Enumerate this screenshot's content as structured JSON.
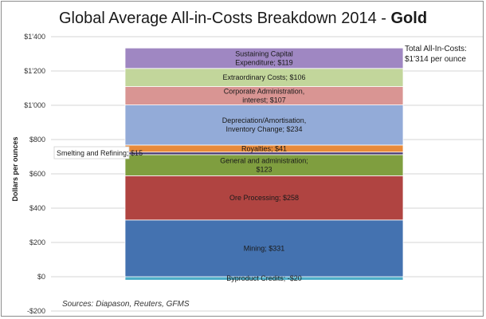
{
  "chart_data": {
    "type": "bar",
    "stacked": true,
    "title": "Global Average All-in-Costs Breakdown 2014 - ",
    "title_emphasis": "Gold",
    "ylabel": "Dollars per ounces",
    "ylim": [
      -200,
      1400
    ],
    "yticks": [
      -200,
      0,
      200,
      400,
      600,
      800,
      1000,
      1200,
      1400
    ],
    "ytick_labels": [
      "-$200",
      "$0",
      "$200",
      "$400",
      "$600",
      "$800",
      "$1'000",
      "$1'200",
      "$1'400"
    ],
    "grid": true,
    "segments": [
      {
        "name": "Byproduct Credits",
        "value": -20,
        "label": [
          "Byproduct Credits; -$20"
        ],
        "color": "#4bacc6"
      },
      {
        "name": "Mining",
        "value": 331,
        "label": [
          "Mining; $331"
        ],
        "color": "#4472b0"
      },
      {
        "name": "Ore Processing",
        "value": 258,
        "label": [
          "Ore Processing; $258"
        ],
        "color": "#b04441"
      },
      {
        "name": "General and administration",
        "value": 123,
        "label": [
          "General and administration;",
          "$123"
        ],
        "color": "#7f9e3f"
      },
      {
        "name": "Smelting and Refining",
        "value": 15,
        "label": [],
        "color": "#4b3c74"
      },
      {
        "name": "Royalties",
        "value": 41,
        "label": [
          "Royalties; $41"
        ],
        "color": "#e88a3a"
      },
      {
        "name": "Depreciation/Amortisation, Inventory Change",
        "value": 234,
        "label": [
          "Depreciation/Amortisation,",
          "Inventory Change; $234"
        ],
        "color": "#93abd8"
      },
      {
        "name": "Corporate Administration, interest",
        "value": 107,
        "label": [
          "Corporate Administration,",
          "interest; $107"
        ],
        "color": "#d99593"
      },
      {
        "name": "Extraordinary Costs",
        "value": 106,
        "label": [
          "Extraordinary Costs; $106"
        ],
        "color": "#c2d69b"
      },
      {
        "name": "Sustaining Capital Expenditure",
        "value": 119,
        "label": [
          "Sustaining Capital",
          "Expenditure; $119"
        ],
        "color": "#9f87c2"
      }
    ],
    "annotations": {
      "total": [
        "Total All-In-Costs:",
        "$1'314 per ounce"
      ],
      "smelting": "Smelting and Refining; $15",
      "source": "Sources: Diapason, Reuters, GFMS"
    }
  }
}
